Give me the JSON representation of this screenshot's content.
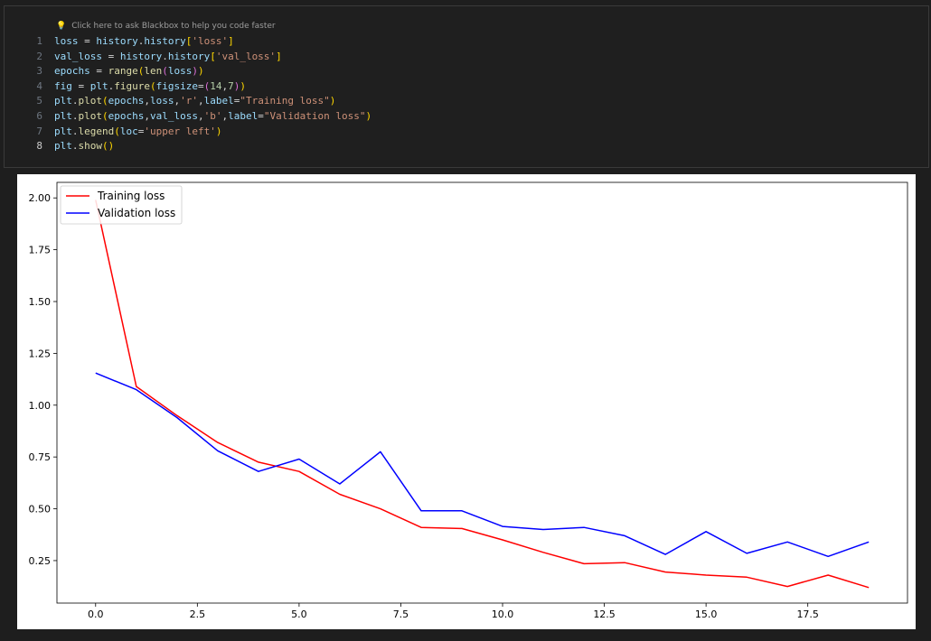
{
  "hint": {
    "icon": "lightbulb-icon",
    "text": "Click here to ask Blackbox to help you code faster"
  },
  "code": {
    "line_numbers": [
      "1",
      "2",
      "3",
      "4",
      "5",
      "6",
      "7",
      "8"
    ],
    "active_line": 8,
    "lines": [
      [
        [
          "v",
          "loss"
        ],
        [
          "p",
          " = "
        ],
        [
          "v",
          "history"
        ],
        [
          "p",
          "."
        ],
        [
          "v",
          "history"
        ],
        [
          "b1",
          "["
        ],
        [
          "s",
          "'loss'"
        ],
        [
          "b1",
          "]"
        ]
      ],
      [
        [
          "v",
          "val_loss"
        ],
        [
          "p",
          " = "
        ],
        [
          "v",
          "history"
        ],
        [
          "p",
          "."
        ],
        [
          "v",
          "history"
        ],
        [
          "b1",
          "["
        ],
        [
          "s",
          "'val_loss'"
        ],
        [
          "b1",
          "]"
        ]
      ],
      [
        [
          "v",
          "epochs"
        ],
        [
          "p",
          " = "
        ],
        [
          "f",
          "range"
        ],
        [
          "b1",
          "("
        ],
        [
          "f",
          "len"
        ],
        [
          "b2",
          "("
        ],
        [
          "v",
          "loss"
        ],
        [
          "b2",
          ")"
        ],
        [
          "b1",
          ")"
        ]
      ],
      [
        [
          "v",
          "fig"
        ],
        [
          "p",
          " = "
        ],
        [
          "v",
          "plt"
        ],
        [
          "p",
          "."
        ],
        [
          "f",
          "figure"
        ],
        [
          "b1",
          "("
        ],
        [
          "v",
          "figsize"
        ],
        [
          "p",
          "="
        ],
        [
          "b2",
          "("
        ],
        [
          "n",
          "14"
        ],
        [
          "p",
          ","
        ],
        [
          "n",
          "7"
        ],
        [
          "b2",
          ")"
        ],
        [
          "b1",
          ")"
        ]
      ],
      [
        [
          "v",
          "plt"
        ],
        [
          "p",
          "."
        ],
        [
          "f",
          "plot"
        ],
        [
          "b1",
          "("
        ],
        [
          "v",
          "epochs"
        ],
        [
          "p",
          ","
        ],
        [
          "v",
          "loss"
        ],
        [
          "p",
          ","
        ],
        [
          "s",
          "'r'"
        ],
        [
          "p",
          ","
        ],
        [
          "v",
          "label"
        ],
        [
          "p",
          "="
        ],
        [
          "s",
          "\"Training loss\""
        ],
        [
          "b1",
          ")"
        ]
      ],
      [
        [
          "v",
          "plt"
        ],
        [
          "p",
          "."
        ],
        [
          "f",
          "plot"
        ],
        [
          "b1",
          "("
        ],
        [
          "v",
          "epochs"
        ],
        [
          "p",
          ","
        ],
        [
          "v",
          "val_loss"
        ],
        [
          "p",
          ","
        ],
        [
          "s",
          "'b'"
        ],
        [
          "p",
          ","
        ],
        [
          "v",
          "label"
        ],
        [
          "p",
          "="
        ],
        [
          "s",
          "\"Validation loss\""
        ],
        [
          "b1",
          ")"
        ]
      ],
      [
        [
          "v",
          "plt"
        ],
        [
          "p",
          "."
        ],
        [
          "f",
          "legend"
        ],
        [
          "b1",
          "("
        ],
        [
          "v",
          "loc"
        ],
        [
          "p",
          "="
        ],
        [
          "s",
          "'upper left'"
        ],
        [
          "b1",
          ")"
        ]
      ],
      [
        [
          "v",
          "plt"
        ],
        [
          "p",
          "."
        ],
        [
          "f",
          "show"
        ],
        [
          "b1",
          "()"
        ]
      ]
    ]
  },
  "chart_data": {
    "type": "line",
    "xlim": [
      -0.95,
      19.95
    ],
    "ylim": [
      0.045,
      2.075
    ],
    "xticks": [
      0.0,
      2.5,
      5.0,
      7.5,
      10.0,
      12.5,
      15.0,
      17.5
    ],
    "xtick_labels": [
      "0.0",
      "2.5",
      "5.0",
      "7.5",
      "10.0",
      "12.5",
      "15.0",
      "17.5"
    ],
    "yticks": [
      0.25,
      0.5,
      0.75,
      1.0,
      1.25,
      1.5,
      1.75,
      2.0
    ],
    "ytick_labels": [
      "0.25",
      "0.50",
      "0.75",
      "1.00",
      "1.25",
      "1.50",
      "1.75",
      "2.00"
    ],
    "legend_position": "upper left",
    "grid": false,
    "x": [
      0,
      1,
      2,
      3,
      4,
      5,
      6,
      7,
      8,
      9,
      10,
      11,
      12,
      13,
      14,
      15,
      16,
      17,
      18,
      19
    ],
    "series": [
      {
        "name": "Training loss",
        "color": "#ff0000",
        "values": [
          1.99,
          1.09,
          0.95,
          0.82,
          0.725,
          0.68,
          0.57,
          0.5,
          0.41,
          0.405,
          0.35,
          0.29,
          0.235,
          0.24,
          0.195,
          0.18,
          0.17,
          0.125,
          0.18,
          0.12
        ]
      },
      {
        "name": "Validation loss",
        "color": "#0000ff",
        "values": [
          1.155,
          1.075,
          0.94,
          0.78,
          0.68,
          0.74,
          0.62,
          0.775,
          0.49,
          0.49,
          0.415,
          0.4,
          0.41,
          0.37,
          0.28,
          0.39,
          0.285,
          0.34,
          0.27,
          0.34
        ]
      }
    ]
  }
}
